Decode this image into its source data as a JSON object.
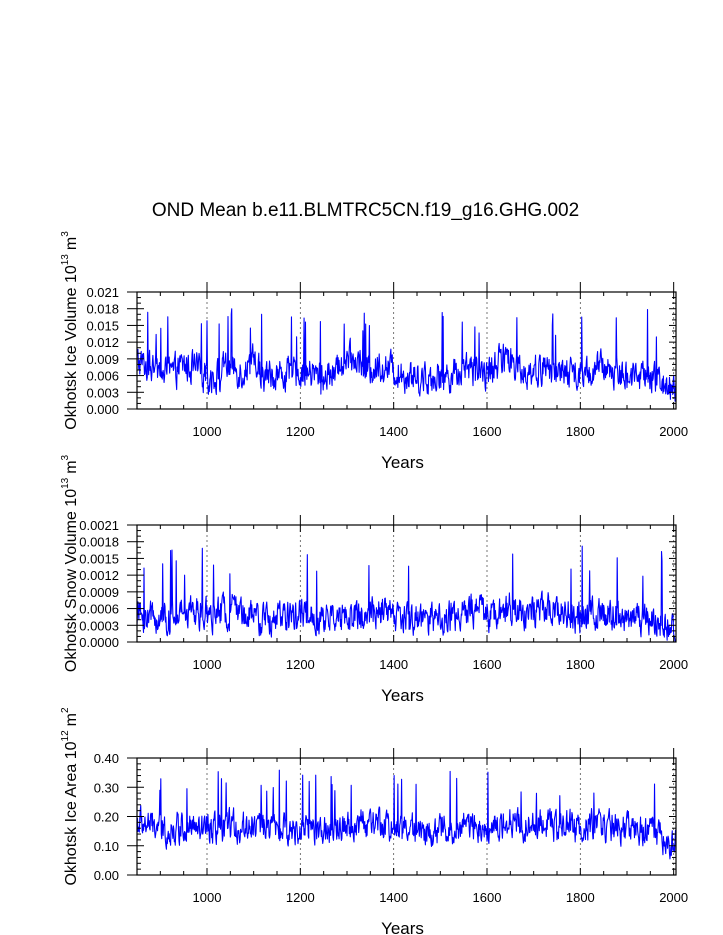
{
  "title": "OND Mean b.e11.BLMTRC5CN.f19_g16.GHG.002",
  "chart_data": [
    {
      "type": "line",
      "name": "ice-volume",
      "ylabel": {
        "text": "Okhotsk Ice Volume 10",
        "exp": "13",
        "unit": "m",
        "unit_exp": "3"
      },
      "xlabel": "Years",
      "xlim": [
        850,
        2005
      ],
      "ylim": [
        0.0,
        0.021
      ],
      "xticks": [
        "1000",
        "1200",
        "1400",
        "1600",
        "1800",
        "2000"
      ],
      "yticks": [
        "0.000",
        "0.003",
        "0.006",
        "0.009",
        "0.012",
        "0.015",
        "0.018",
        "0.021"
      ],
      "grid_x": [
        1000,
        1200,
        1400,
        1600,
        1800,
        2000
      ],
      "line_color": "#0000ff",
      "series": [
        {
          "name": "Okhotsk Ice Volume",
          "x": [
            850,
            875,
            900,
            925,
            950,
            975,
            1000,
            1025,
            1050,
            1075,
            1100,
            1125,
            1150,
            1175,
            1200,
            1225,
            1250,
            1275,
            1300,
            1325,
            1350,
            1375,
            1400,
            1425,
            1450,
            1475,
            1500,
            1525,
            1550,
            1575,
            1600,
            1625,
            1650,
            1675,
            1700,
            1725,
            1750,
            1775,
            1800,
            1825,
            1850,
            1875,
            1900,
            1925,
            1950,
            1975,
            2000
          ],
          "values": [
            0.0085,
            0.0075,
            0.0065,
            0.0062,
            0.0078,
            0.0072,
            0.0055,
            0.0062,
            0.008,
            0.0066,
            0.0085,
            0.006,
            0.0063,
            0.006,
            0.0068,
            0.0062,
            0.0056,
            0.0065,
            0.0088,
            0.0085,
            0.0072,
            0.0078,
            0.007,
            0.0062,
            0.0058,
            0.0055,
            0.006,
            0.0062,
            0.0075,
            0.0068,
            0.0065,
            0.0085,
            0.009,
            0.007,
            0.0068,
            0.0075,
            0.0065,
            0.0067,
            0.0062,
            0.0068,
            0.0075,
            0.0065,
            0.0062,
            0.006,
            0.0058,
            0.005,
            0.0038
          ],
          "noise": 0.0028,
          "peak_max": 0.018,
          "min_value": 0.0008
        }
      ]
    },
    {
      "type": "line",
      "name": "snow-volume",
      "ylabel": {
        "text": "Okhotsk Snow Volume 10",
        "exp": "13",
        "unit": "m",
        "unit_exp": "3"
      },
      "xlabel": "Years",
      "xlim": [
        850,
        2005
      ],
      "ylim": [
        0.0,
        0.0021
      ],
      "xticks": [
        "1000",
        "1200",
        "1400",
        "1600",
        "1800",
        "2000"
      ],
      "yticks": [
        "0.0000",
        "0.0003",
        "0.0006",
        "0.0009",
        "0.0012",
        "0.0015",
        "0.0018",
        "0.0021"
      ],
      "grid_x": [
        1000,
        1200,
        1400,
        1600,
        1800,
        2000
      ],
      "line_color": "#0000ff",
      "series": [
        {
          "name": "Okhotsk Snow Volume",
          "x": [
            850,
            875,
            900,
            925,
            950,
            975,
            1000,
            1025,
            1050,
            1075,
            1100,
            1125,
            1150,
            1175,
            1200,
            1225,
            1250,
            1275,
            1300,
            1325,
            1350,
            1375,
            1400,
            1425,
            1450,
            1475,
            1500,
            1525,
            1550,
            1575,
            1600,
            1625,
            1650,
            1675,
            1700,
            1725,
            1750,
            1775,
            1800,
            1825,
            1850,
            1875,
            1900,
            1925,
            1950,
            1975,
            2000
          ],
          "values": [
            0.0005,
            0.00048,
            0.00045,
            0.00042,
            0.0005,
            0.00055,
            0.00048,
            0.00052,
            0.00058,
            0.00055,
            0.0004,
            0.00038,
            0.00042,
            0.00045,
            0.00048,
            0.00045,
            0.0004,
            0.00042,
            0.00048,
            0.00045,
            0.0005,
            0.00055,
            0.00048,
            0.00042,
            0.0004,
            0.00038,
            0.0004,
            0.00042,
            0.0005,
            0.00055,
            0.00052,
            0.00048,
            0.0006,
            0.00055,
            0.0005,
            0.00058,
            0.00055,
            0.0005,
            0.00045,
            0.00048,
            0.0005,
            0.00046,
            0.00045,
            0.00042,
            0.0004,
            0.00035,
            0.00025
          ],
          "noise": 0.00028,
          "peak_max": 0.00175,
          "min_value": 2e-05
        }
      ]
    },
    {
      "type": "line",
      "name": "ice-area",
      "ylabel": {
        "text": "Okhotsk Ice Area 10",
        "exp": "12",
        "unit": "m",
        "unit_exp": "2"
      },
      "xlabel": "Years",
      "xlim": [
        850,
        2005
      ],
      "ylim": [
        0.0,
        0.4
      ],
      "xticks": [
        "1000",
        "1200",
        "1400",
        "1600",
        "1800",
        "2000"
      ],
      "yticks": [
        "0.00",
        "0.10",
        "0.20",
        "0.30",
        "0.40"
      ],
      "grid_x": [
        1000,
        1200,
        1400,
        1600,
        1800,
        2000
      ],
      "line_color": "#0000ff",
      "series": [
        {
          "name": "Okhotsk Ice Area",
          "x": [
            850,
            875,
            900,
            925,
            950,
            975,
            1000,
            1025,
            1050,
            1075,
            1100,
            1125,
            1150,
            1175,
            1200,
            1225,
            1250,
            1275,
            1300,
            1325,
            1350,
            1375,
            1400,
            1425,
            1450,
            1475,
            1500,
            1525,
            1550,
            1575,
            1600,
            1625,
            1650,
            1675,
            1700,
            1725,
            1750,
            1775,
            1800,
            1825,
            1850,
            1875,
            1900,
            1925,
            1950,
            1975,
            2000
          ],
          "values": [
            0.18,
            0.17,
            0.16,
            0.15,
            0.17,
            0.16,
            0.15,
            0.16,
            0.17,
            0.16,
            0.18,
            0.16,
            0.16,
            0.15,
            0.17,
            0.16,
            0.15,
            0.16,
            0.18,
            0.18,
            0.17,
            0.17,
            0.17,
            0.16,
            0.15,
            0.15,
            0.15,
            0.16,
            0.17,
            0.17,
            0.16,
            0.18,
            0.19,
            0.17,
            0.17,
            0.18,
            0.16,
            0.17,
            0.16,
            0.17,
            0.17,
            0.16,
            0.16,
            0.15,
            0.15,
            0.13,
            0.1
          ],
          "noise": 0.05,
          "peak_max": 0.36,
          "min_value": 0.04
        }
      ]
    }
  ]
}
